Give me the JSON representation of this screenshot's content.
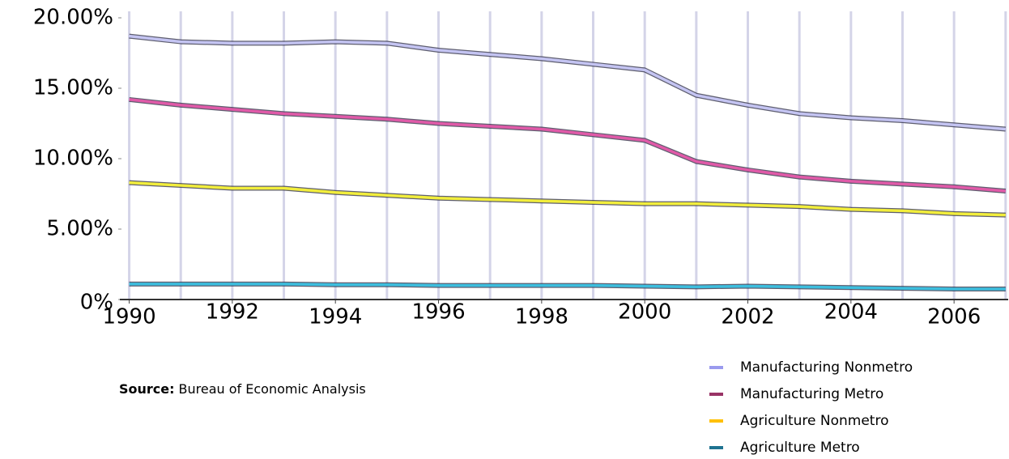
{
  "chart_data": {
    "type": "line",
    "x": [
      1990,
      1991,
      1992,
      1993,
      1994,
      1995,
      1996,
      1997,
      1998,
      1999,
      2000,
      2001,
      2002,
      2003,
      2004,
      2005,
      2006,
      2007
    ],
    "xlim": [
      1989.85,
      2007.05
    ],
    "xticks": [
      1990,
      1992,
      1994,
      1996,
      1998,
      2000,
      2002,
      2004,
      2006
    ],
    "ylim": [
      0,
      20
    ],
    "yticks": [
      {
        "value": 0,
        "label": "0%"
      },
      {
        "value": 5,
        "label": "5.00%"
      },
      {
        "value": 10,
        "label": "10.00%"
      },
      {
        "value": 15,
        "label": "15.00%"
      },
      {
        "value": 20,
        "label": "20.00%"
      }
    ],
    "xgrid": true,
    "series": [
      {
        "name": "Manufacturing Nonmetro",
        "color": "#c4c4f2",
        "values": [
          18.7,
          18.3,
          18.2,
          18.2,
          18.3,
          18.2,
          17.7,
          17.4,
          17.1,
          16.7,
          16.3,
          14.5,
          13.8,
          13.2,
          12.9,
          12.7,
          12.4,
          12.1
        ]
      },
      {
        "name": "Manufacturing Metro",
        "color": "#e05aa8",
        "values": [
          14.2,
          13.8,
          13.5,
          13.2,
          13.0,
          12.8,
          12.5,
          12.3,
          12.1,
          11.7,
          11.3,
          9.8,
          9.2,
          8.7,
          8.4,
          8.2,
          8.0,
          7.7
        ]
      },
      {
        "name": "Agriculture Nonmetro",
        "color": "#f2ee3c",
        "values": [
          8.3,
          8.1,
          7.9,
          7.9,
          7.6,
          7.4,
          7.2,
          7.1,
          7.0,
          6.9,
          6.8,
          6.8,
          6.7,
          6.6,
          6.4,
          6.3,
          6.1,
          6.0
        ]
      },
      {
        "name": "Agriculture Metro",
        "color": "#3cbede",
        "values": [
          1.1,
          1.1,
          1.1,
          1.1,
          1.05,
          1.05,
          1.0,
          1.0,
          1.0,
          1.0,
          0.95,
          0.9,
          0.95,
          0.9,
          0.85,
          0.8,
          0.75,
          0.75
        ]
      }
    ],
    "legend_colors": [
      "#9a9aee",
      "#993366",
      "#ffc000",
      "#1f7391"
    ],
    "source_label": "Source:",
    "source": "Bureau of Economic Analysis"
  }
}
